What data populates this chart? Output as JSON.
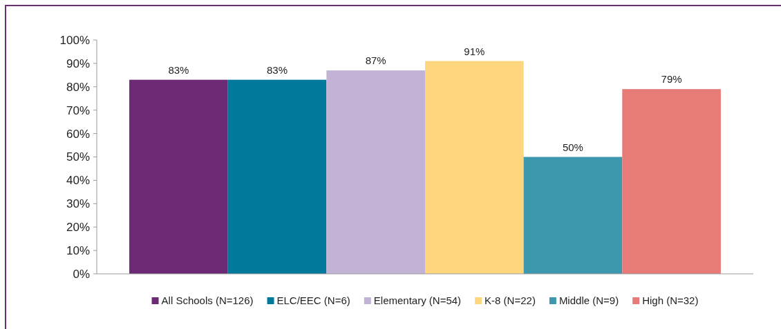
{
  "chart_data": {
    "type": "bar",
    "categories": [
      null
    ],
    "series": [
      {
        "name": "All Schools (N=126)",
        "color": "#6b2a73",
        "values": [
          83
        ]
      },
      {
        "name": "ELC/EEC (N=6)",
        "color": "#00799a",
        "values": [
          83
        ]
      },
      {
        "name": "Elementary (N=54)",
        "color": "#c2b3d6",
        "values": [
          87
        ]
      },
      {
        "name": "K-8 (N=22)",
        "color": "#fed67e",
        "values": [
          91
        ]
      },
      {
        "name": "Middle (N=9)",
        "color": "#3d98ae",
        "values": [
          50
        ]
      },
      {
        "name": "High (N=32)",
        "color": "#e77b77",
        "values": [
          79
        ]
      }
    ],
    "ylim": [
      0,
      100
    ],
    "yticks": [
      {
        "value": 0,
        "label": "0%"
      },
      {
        "value": 10,
        "label": "10%"
      },
      {
        "value": 20,
        "label": "20%"
      },
      {
        "value": 30,
        "label": "30%"
      },
      {
        "value": 40,
        "label": "40%"
      },
      {
        "value": 50,
        "label": "50%"
      },
      {
        "value": 60,
        "label": "60%"
      },
      {
        "value": 70,
        "label": "70%"
      },
      {
        "value": 80,
        "label": "80%"
      },
      {
        "value": 90,
        "label": "90%"
      },
      {
        "value": 100,
        "label": "100%"
      }
    ],
    "value_labels": [
      "83%",
      "83%",
      "87%",
      "91%",
      "50%",
      "79%"
    ],
    "grid": false,
    "legend": "bottom"
  }
}
